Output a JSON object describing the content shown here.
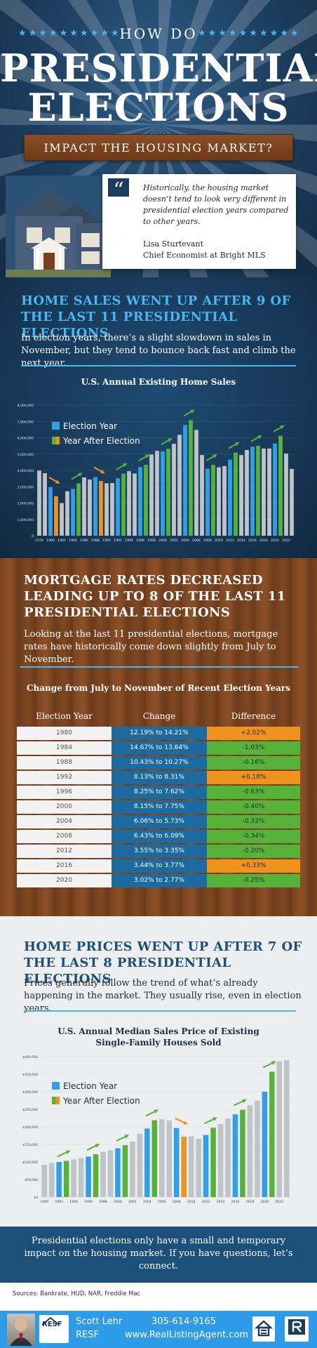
{
  "hero": {
    "stars_left": "★★★★★★★★★★",
    "stars_right": "★★★★★★★★★★",
    "kicker": "HOW DO",
    "title_line1": "PRESIDENTIAL",
    "title_line2": "ELECTIONS",
    "subtitle": "IMPACT THE HOUSING MARKET?",
    "quote": "Historically, the housing market doesn’t tend to look very different in presidential election years compared to other years.",
    "quote_author": "Lisa Sturtevant",
    "quote_author_title": "Chief Economist at Bright MLS"
  },
  "section1": {
    "heading": "HOME SALES WENT UP AFTER 9 OF THE LAST 11 PRESIDENTIAL ELECTIONS",
    "body": "In election years, there’s a slight slowdown in sales in November, but they tend to bounce back fast and climb the next year."
  },
  "section2": {
    "heading": "MORTGAGE RATES DECREASED LEADING UP TO 8 OF THE LAST 11 PRESIDENTIAL ELECTIONS",
    "body": "Looking at the last 11 presidential elections, mortgage rates have historically come down slightly from July to November."
  },
  "section3": {
    "heading": "HOME PRICES WENT UP AFTER 7 OF THE LAST 8 PRESIDENTIAL ELECTIONS",
    "body": "Prices generally follow the trend of what’s already happening in the market. They usually rise, even in election years."
  },
  "closing": "Presidential elections only have a small and temporary impact on the housing market. If you have questions, let’s connect.",
  "sources": "Sources: Bankrate, HUD, NAR, Freddie Mac",
  "footer": {
    "logo_text": "RESF",
    "name": "Scott Lehr",
    "company": "RESF",
    "phone": "305-614-9165",
    "website": "www.RealListingAgent.com"
  },
  "colors": {
    "election_year": "#2f9fe6",
    "year_after": "#57b23a",
    "other_year": "#c0c4c8",
    "sales_decline": "#f0921e",
    "rate_increase": "#f0921e",
    "rate_decrease": "#57b23a"
  },
  "chart_data": [
    {
      "type": "bar",
      "title": "U.S. Annual Existing Home Sales",
      "legend": [
        "Election Year",
        "Year After Election"
      ],
      "legend_position": "top-left",
      "ylim": [
        0,
        8000000
      ],
      "yticks": [
        "0",
        "1,000,000",
        "2,000,000",
        "3,000,000",
        "4,000,000",
        "5,000,000",
        "6,000,000",
        "7,000,000",
        "8,000,000"
      ],
      "xtick_labels": [
        "1978",
        "1980",
        "1982",
        "1984",
        "1986",
        "1988",
        "1990",
        "1992",
        "1994",
        "1996",
        "1998",
        "2000",
        "2002",
        "2004",
        "2006",
        "2008",
        "2010",
        "2012",
        "2014",
        "2016",
        "2018",
        "2020",
        "2022"
      ],
      "x": [
        1978,
        1979,
        1980,
        1981,
        1982,
        1983,
        1984,
        1985,
        1986,
        1987,
        1988,
        1989,
        1990,
        1991,
        1992,
        1993,
        1994,
        1995,
        1996,
        1997,
        1998,
        1999,
        2000,
        2001,
        2002,
        2003,
        2004,
        2005,
        2006,
        2007,
        2008,
        2009,
        2010,
        2011,
        2012,
        2013,
        2014,
        2015,
        2016,
        2017,
        2018,
        2019,
        2020,
        2021,
        2022,
        2023
      ],
      "values": [
        3990000,
        3830000,
        2970000,
        2420000,
        1990000,
        2720000,
        2870000,
        3210000,
        3570000,
        3440000,
        3590000,
        3350000,
        3210000,
        3220000,
        3520000,
        3800000,
        3950000,
        3810000,
        4200000,
        4340000,
        4970000,
        5200000,
        5170000,
        5330000,
        5630000,
        6180000,
        6780000,
        7080000,
        6480000,
        4940000,
        4110000,
        4340000,
        4190000,
        4260000,
        4660000,
        5090000,
        4940000,
        5250000,
        5450000,
        5510000,
        5340000,
        5340000,
        5640000,
        6120000,
        5030000,
        4090000
      ],
      "categories_by_year": {
        "election": [
          1980,
          1984,
          1988,
          1992,
          1996,
          2000,
          2004,
          2008,
          2012,
          2016,
          2020
        ],
        "after": [
          1981,
          1985,
          1989,
          1993,
          1997,
          2001,
          2005,
          2009,
          2013,
          2017,
          2021
        ]
      },
      "annotations": [
        {
          "from": 1980,
          "to": 1981,
          "direction": "down"
        },
        {
          "from": 1984,
          "to": 1985,
          "direction": "up"
        },
        {
          "from": 1988,
          "to": 1989,
          "direction": "down"
        },
        {
          "from": 1992,
          "to": 1993,
          "direction": "up"
        },
        {
          "from": 1996,
          "to": 1997,
          "direction": "up"
        },
        {
          "from": 2000,
          "to": 2001,
          "direction": "up"
        },
        {
          "from": 2004,
          "to": 2005,
          "direction": "up"
        },
        {
          "from": 2008,
          "to": 2009,
          "direction": "up"
        },
        {
          "from": 2012,
          "to": 2013,
          "direction": "up"
        },
        {
          "from": 2016,
          "to": 2017,
          "direction": "up"
        },
        {
          "from": 2020,
          "to": 2021,
          "direction": "up"
        }
      ]
    },
    {
      "type": "table",
      "title": "Change from July to November of Recent Election Years",
      "columns": [
        "Election Year",
        "Change",
        "Difference"
      ],
      "rows": [
        {
          "year": "1980",
          "change": "12.19% to 14.21%",
          "difference": "+2.02%",
          "sign": "up"
        },
        {
          "year": "1984",
          "change": "14.67% to 13.64%",
          "difference": "-1.03%",
          "sign": "down"
        },
        {
          "year": "1988",
          "change": "10.43% to 10.27%",
          "difference": "-0.16%",
          "sign": "down"
        },
        {
          "year": "1992",
          "change": "8.13% to 8.31%",
          "difference": "+0.18%",
          "sign": "up"
        },
        {
          "year": "1996",
          "change": "8.25% to 7.62%",
          "difference": "-0.63%",
          "sign": "down"
        },
        {
          "year": "2000",
          "change": "8.15% to 7.75%",
          "difference": "-0.40%",
          "sign": "down"
        },
        {
          "year": "2004",
          "change": "6.06% to 5.73%",
          "difference": "-0.33%",
          "sign": "down"
        },
        {
          "year": "2008",
          "change": "6.43% to 6.09%",
          "difference": "-0.34%",
          "sign": "down"
        },
        {
          "year": "2012",
          "change": "3.55% to 3.35%",
          "difference": "-0.20%",
          "sign": "down"
        },
        {
          "year": "2016",
          "change": "3.44% to 3.77%",
          "difference": "+0.33%",
          "sign": "up"
        },
        {
          "year": "2020",
          "change": "3.02% to 2.77%",
          "difference": "-0.25%",
          "sign": "down"
        }
      ]
    },
    {
      "type": "bar",
      "title": "U.S. Annual Median Sales Price of Existing Single-Family Houses Sold",
      "legend": [
        "Election Year",
        "Year After Election"
      ],
      "legend_position": "top-left",
      "ylim": [
        0,
        400000
      ],
      "yticks": [
        "$0",
        "$50,000",
        "$100,000",
        "$150,000",
        "$200,000",
        "$250,000",
        "$300,000",
        "$350,000",
        "$400,000"
      ],
      "xtick_labels": [
        "1990",
        "1992",
        "1994",
        "1996",
        "1998",
        "2000",
        "2002",
        "2004",
        "2006",
        "2008",
        "2010",
        "2012",
        "2014",
        "2016",
        "2018",
        "2020",
        "2022"
      ],
      "x": [
        1990,
        1991,
        1992,
        1993,
        1994,
        1995,
        1996,
        1997,
        1998,
        1999,
        2000,
        2001,
        2002,
        2003,
        2004,
        2005,
        2006,
        2007,
        2008,
        2009,
        2010,
        2011,
        2012,
        2013,
        2014,
        2015,
        2016,
        2017,
        2018,
        2019,
        2020,
        2021,
        2022,
        2023
      ],
      "values": [
        92000,
        97100,
        99700,
        103100,
        107200,
        110500,
        115200,
        121800,
        128400,
        133300,
        139000,
        147800,
        158100,
        180200,
        195200,
        219000,
        221900,
        217900,
        196600,
        172100,
        173100,
        166200,
        176800,
        197400,
        208300,
        223900,
        235500,
        248800,
        261600,
        274600,
        300200,
        357100,
        386300,
        389800
      ],
      "categories_by_year": {
        "election": [
          1992,
          1996,
          2000,
          2004,
          2008,
          2012,
          2016,
          2020
        ],
        "after": [
          1993,
          1997,
          2001,
          2005,
          2009,
          2013,
          2017,
          2021
        ]
      },
      "annotations": [
        {
          "from": 1992,
          "to": 1993,
          "direction": "up"
        },
        {
          "from": 1996,
          "to": 1997,
          "direction": "up"
        },
        {
          "from": 2000,
          "to": 2001,
          "direction": "up"
        },
        {
          "from": 2004,
          "to": 2005,
          "direction": "up"
        },
        {
          "from": 2008,
          "to": 2009,
          "direction": "down"
        },
        {
          "from": 2012,
          "to": 2013,
          "direction": "up"
        },
        {
          "from": 2016,
          "to": 2017,
          "direction": "up"
        },
        {
          "from": 2020,
          "to": 2021,
          "direction": "up"
        }
      ]
    }
  ]
}
